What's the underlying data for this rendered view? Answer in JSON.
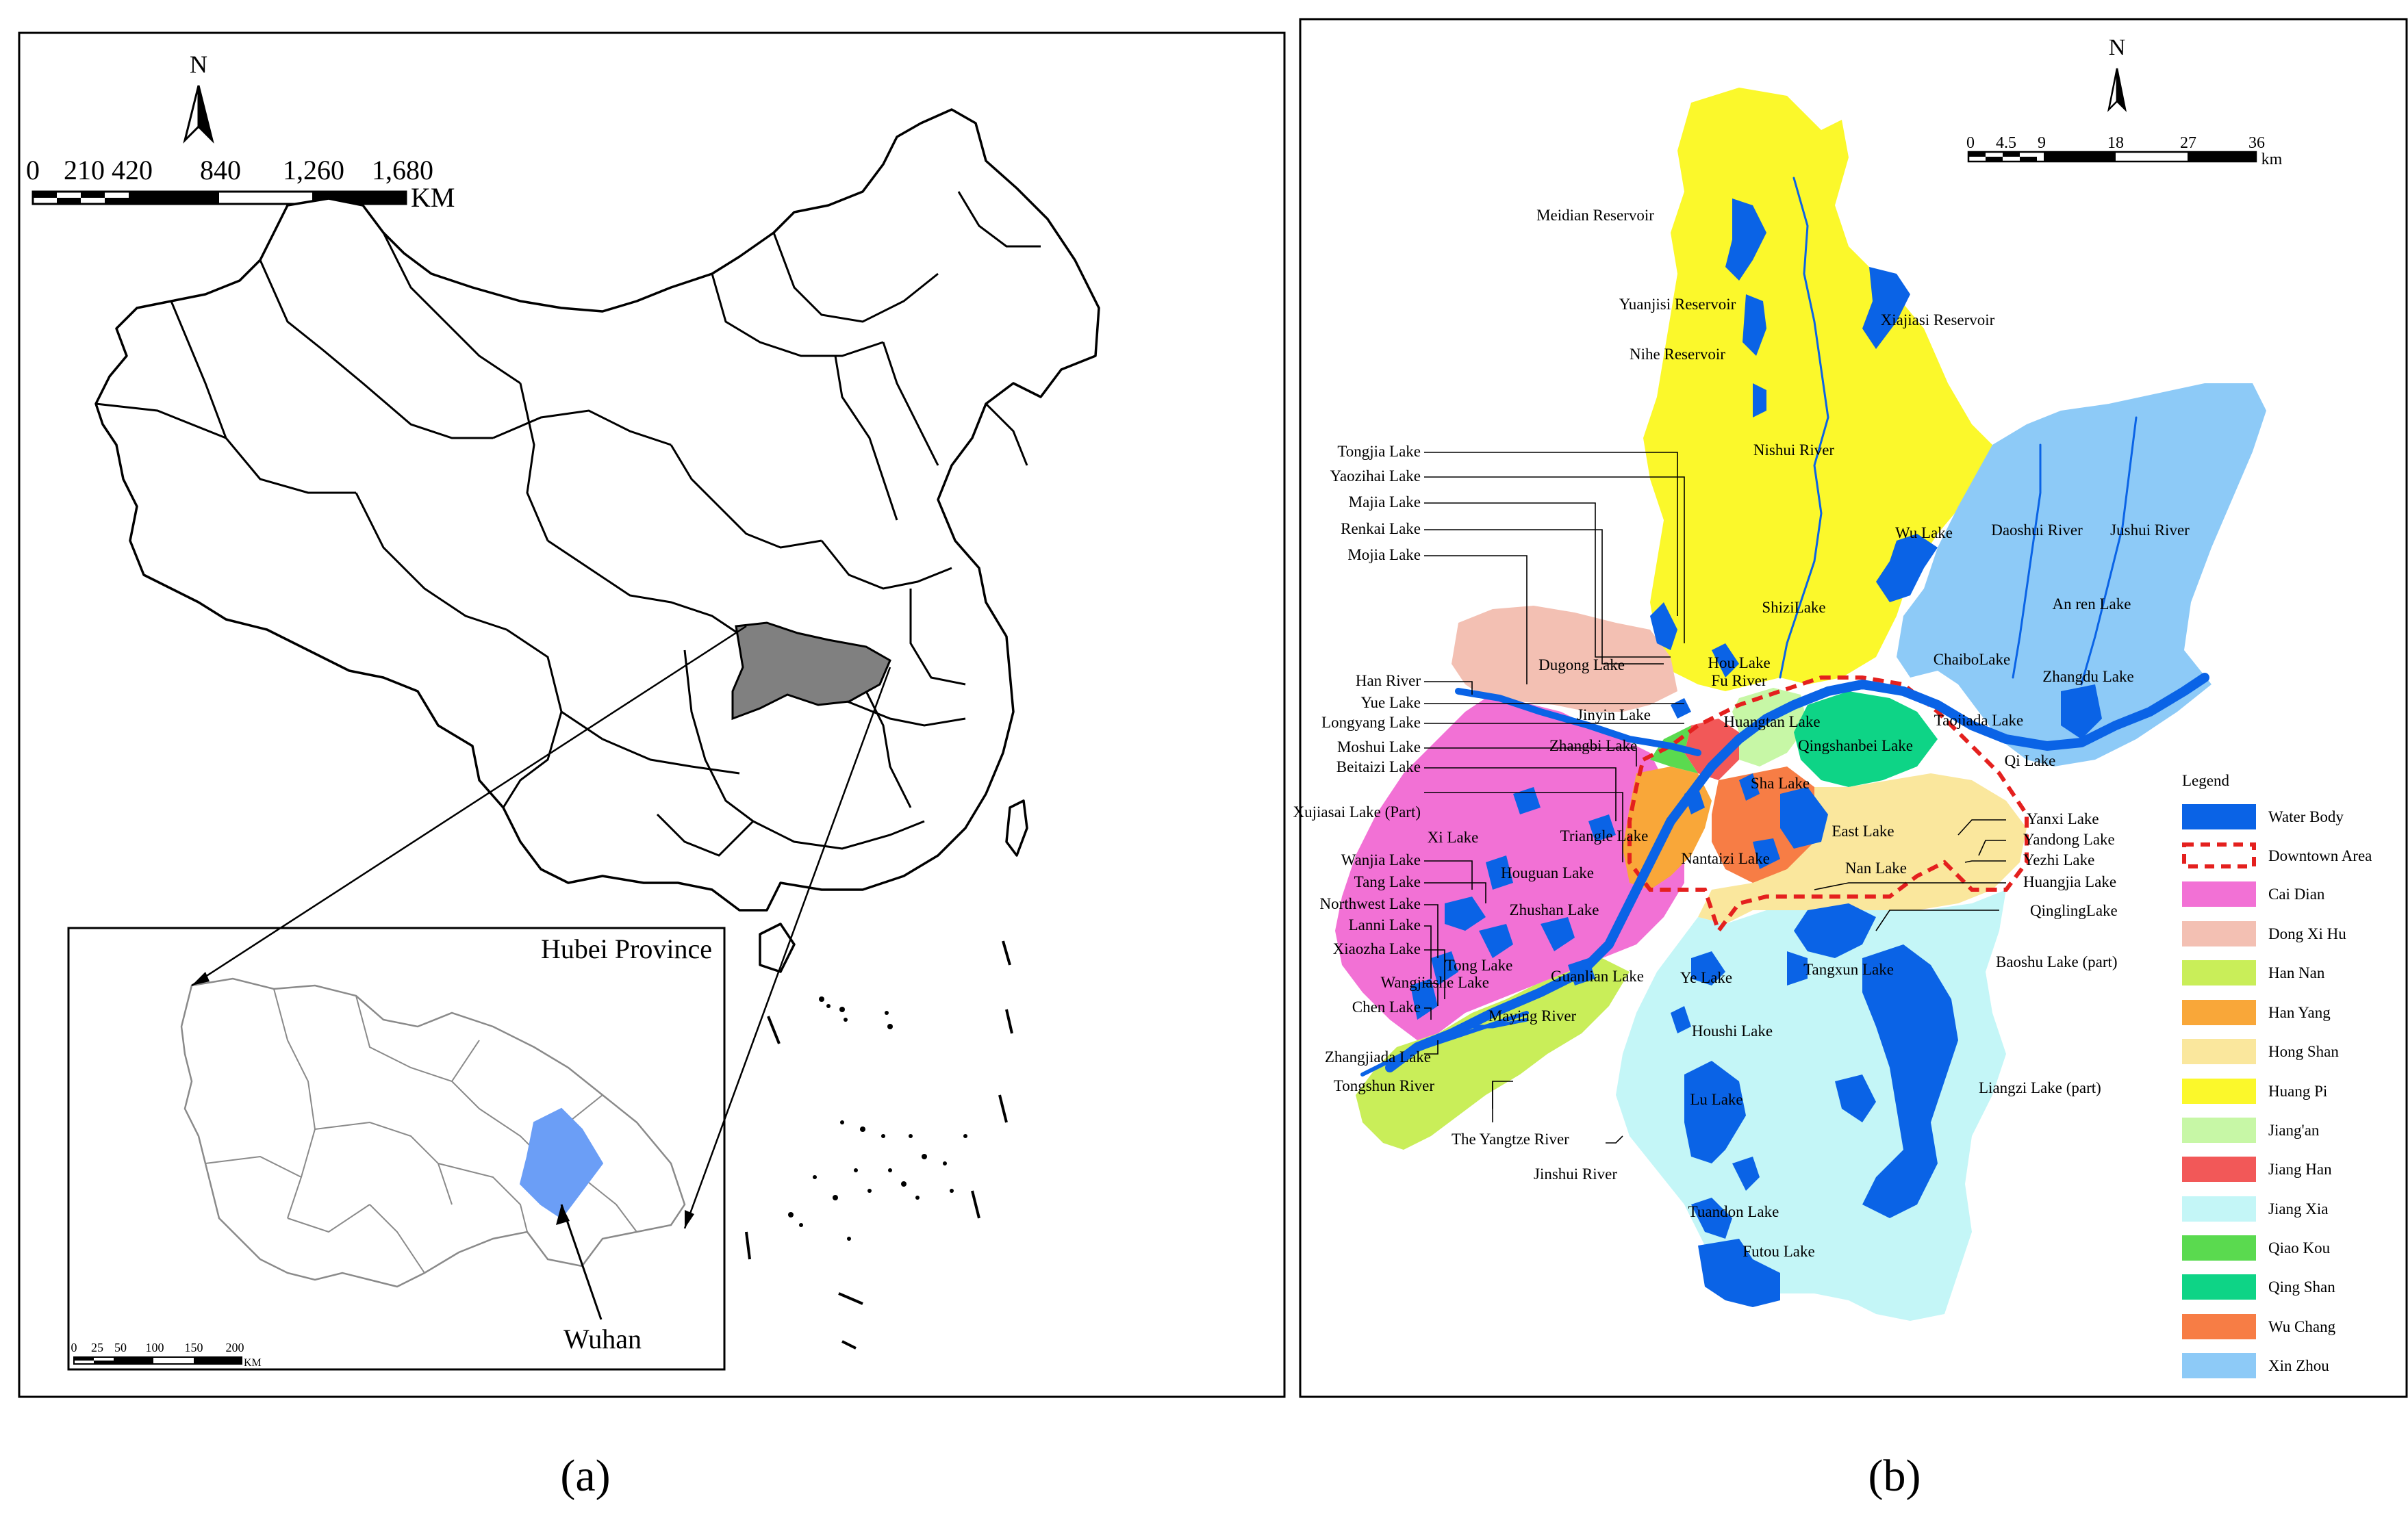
{
  "panel_a": {
    "caption": "(a)",
    "north": "N",
    "scale": {
      "ticks": [
        "0",
        "210",
        "420",
        "840",
        "1,260",
        "1,680"
      ],
      "unit": "KM"
    },
    "inset": {
      "title": "Hubei Province",
      "city_label": "Wuhan",
      "scale": {
        "ticks": [
          "0",
          "25",
          "50",
          "100",
          "150",
          "200"
        ],
        "unit": "KM"
      }
    }
  },
  "panel_b": {
    "caption": "(b)",
    "north": "N",
    "scale": {
      "ticks": [
        "0",
        "4.5",
        "9",
        "18",
        "27",
        "36"
      ],
      "unit": "km"
    },
    "legend": {
      "title": "Legend",
      "items": [
        {
          "label": "Water Body",
          "color": "#0a63e6"
        },
        {
          "label": "Downtown Area",
          "color": "#e4201e",
          "style": "dashed"
        },
        {
          "label": "Cai Dian",
          "color": "#f271d5"
        },
        {
          "label": "Dong Xi Hu",
          "color": "#f3c0b3"
        },
        {
          "label": "Han Nan",
          "color": "#c9ee59"
        },
        {
          "label": "Han Yang",
          "color": "#f9a739"
        },
        {
          "label": "Hong Shan",
          "color": "#fae79d"
        },
        {
          "label": "Huang Pi",
          "color": "#fbf82b"
        },
        {
          "label": "Jiang'an",
          "color": "#c7f7a6"
        },
        {
          "label": "Jiang Han",
          "color": "#f25858"
        },
        {
          "label": "Jiang Xia",
          "color": "#c4f6f7"
        },
        {
          "label": "Qiao Kou",
          "color": "#5ada4f"
        },
        {
          "label": "Qing Shan",
          "color": "#0ed486"
        },
        {
          "label": "Wu Chang",
          "color": "#f77d45"
        },
        {
          "label": "Xin Zhou",
          "color": "#8dcaf7"
        }
      ]
    },
    "leader_labels": [
      "Tongjia Lake",
      "Yaozihai Lake",
      "Majia Lake",
      "Renkai Lake",
      "Mojia Lake",
      "Han River",
      "Yue Lake",
      "Longyang Lake",
      "Moshui Lake",
      "Beitaizi Lake",
      "Xujiasai Lake (Part)",
      "Wanjia Lake",
      "Tang Lake",
      "Northwest Lake",
      "Lanni Lake",
      "Xiaozha Lake",
      "Wangjiashe Lake",
      "Chen Lake",
      "Zhangjiada Lake",
      "Tongshun River",
      "The Yangtze River",
      "Jinshui River",
      "Yanxi Lake",
      "Yandong Lake",
      "Yezhi Lake",
      "Huangjia Lake",
      "QinglingLake",
      "Baoshu Lake (part)",
      "Liangzi Lake (part)"
    ],
    "map_labels": [
      "Meidian Reservoir",
      "Yuanjisi Reservoir",
      "Nihe Reservoir",
      "Xiajiasi Reservoir",
      "Nishui River",
      "Wu Lake",
      "Daoshui River",
      "Jushui River",
      "ShiziLake",
      "An ren Lake",
      "ChaiboLake",
      "Zhangdu Lake",
      "Dugong Lake",
      "Hou Lake",
      "Fu River",
      "Jinyin Lake",
      "Huangtan Lake",
      "Taojiada Lake",
      "Zhangbi Lake",
      "Qingshanbei Lake",
      "Qi Lake",
      "Sha Lake",
      "Xi Lake",
      "Triangle Lake",
      "East Lake",
      "Nantaizi Lake",
      "Houguan Lake",
      "Nan Lake",
      "Zhushan Lake",
      "Tong Lake",
      "Guanlian Lake",
      "Ye Lake",
      "Tangxun Lake",
      "Maying River",
      "Houshi Lake",
      "Lu Lake",
      "Tuandon Lake",
      "Futou Lake"
    ]
  }
}
